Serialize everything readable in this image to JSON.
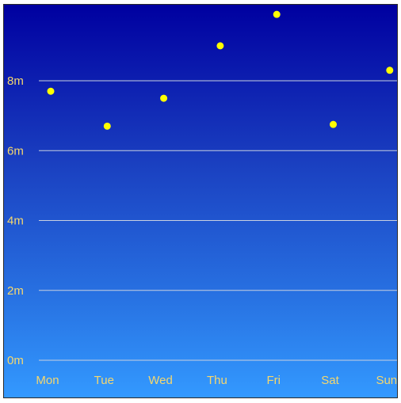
{
  "chart_data": {
    "type": "scatter",
    "title": "",
    "xlabel": "",
    "ylabel": "",
    "categories": [
      "Mon",
      "Tue",
      "Wed",
      "Thu",
      "Fri",
      "Sat",
      "Sun"
    ],
    "values": [
      7.7,
      6.7,
      7.5,
      9.0,
      9.9,
      6.75,
      8.3
    ],
    "y_ticks": [
      {
        "value": 0,
        "label": "0m"
      },
      {
        "value": 2,
        "label": "2m"
      },
      {
        "value": 4,
        "label": "4m"
      },
      {
        "value": 6,
        "label": "6m"
      },
      {
        "value": 8,
        "label": "8m"
      }
    ],
    "ylim": [
      0,
      10
    ],
    "grid": true,
    "legend": "none",
    "colors": {
      "point": "#ffff00",
      "tick_label": "#f5d76e",
      "gridline": "#c8d0e0",
      "background_top": "#0000a0",
      "background_bottom": "#3399ff"
    }
  }
}
